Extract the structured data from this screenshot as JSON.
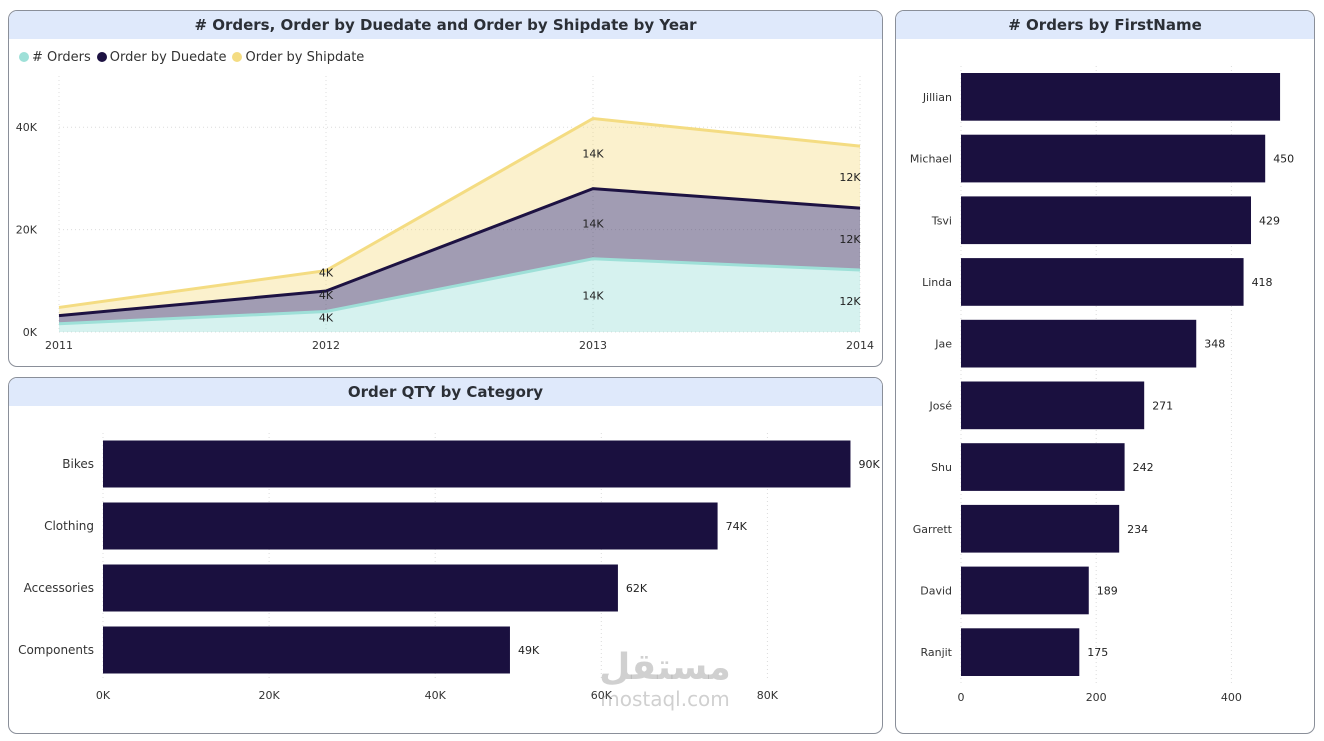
{
  "watermark": {
    "arabic": "مستقل",
    "latin": "mostaql.com"
  },
  "colors": {
    "orders": "#9ee0d8",
    "duedate": "#1d1242",
    "shipdate": "#f4dc82",
    "bar": "#1a103f"
  },
  "charts": {
    "area": {
      "title": "# Orders, Order by Duedate and Order by Shipdate by Year",
      "legend": [
        "# Orders",
        "Order by Duedate",
        "Order by Shipdate"
      ]
    },
    "category": {
      "title": "Order QTY by Category"
    },
    "firstname": {
      "title": "# Orders by FirstName"
    }
  },
  "chart_data": [
    {
      "type": "area",
      "title": "# Orders, Order by Duedate and Order by Shipdate by Year",
      "x": [
        "2011",
        "2012",
        "2013",
        "2014"
      ],
      "stacked": true,
      "series": [
        {
          "name": "# Orders",
          "values": [
            1600,
            4000,
            14300,
            12100
          ],
          "labels": [
            "",
            "4K",
            "14K",
            "12K"
          ]
        },
        {
          "name": "Order by Duedate",
          "values": [
            1600,
            4000,
            13700,
            12100
          ],
          "labels": [
            "",
            "4K",
            "14K",
            "12K"
          ]
        },
        {
          "name": "Order by Shipdate",
          "values": [
            1600,
            4000,
            13700,
            12100
          ],
          "labels": [
            "",
            "4K",
            "14K",
            "12K"
          ]
        }
      ],
      "ylim": [
        0,
        50000
      ],
      "yticks": [
        0,
        20000,
        40000
      ],
      "ytick_labels": [
        "0K",
        "20K",
        "40K"
      ],
      "grid": true,
      "legend_position": "top-left"
    },
    {
      "type": "bar",
      "orientation": "horizontal",
      "title": "Order QTY by Category",
      "categories": [
        "Bikes",
        "Clothing",
        "Accessories",
        "Components"
      ],
      "values": [
        90000,
        74000,
        62000,
        49000
      ],
      "labels": [
        "90K",
        "74K",
        "62K",
        "49K"
      ],
      "xlim": [
        0,
        95000
      ],
      "xticks": [
        0,
        20000,
        40000,
        60000,
        80000
      ],
      "xtick_labels": [
        "0K",
        "20K",
        "40K",
        "60K",
        "80K"
      ],
      "grid": true
    },
    {
      "type": "bar",
      "orientation": "horizontal",
      "title": "# Orders by FirstName",
      "categories": [
        "Jillian",
        "Michael",
        "Tsvi",
        "Linda",
        "Jae",
        "José",
        "Shu",
        "Garrett",
        "David",
        "Ranjit"
      ],
      "values": [
        472,
        450,
        429,
        418,
        348,
        271,
        242,
        234,
        189,
        175
      ],
      "labels": [
        "",
        "450",
        "429",
        "418",
        "348",
        "271",
        "242",
        "234",
        "189",
        "175"
      ],
      "xlim": [
        0,
        500
      ],
      "xticks": [
        0,
        200,
        400
      ],
      "xtick_labels": [
        "0",
        "200",
        "400"
      ],
      "grid": true
    }
  ]
}
